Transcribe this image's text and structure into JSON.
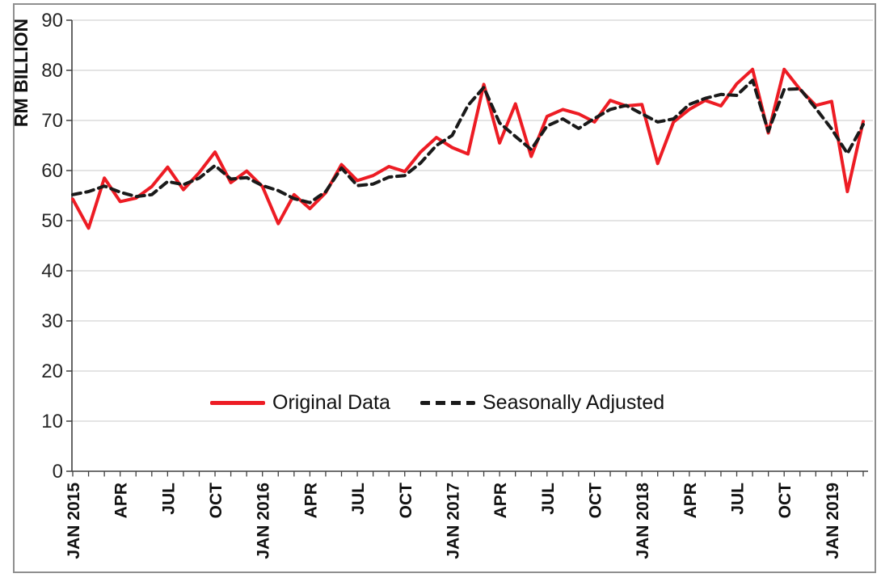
{
  "chart_data": {
    "type": "line",
    "title": "",
    "ylabel": "RM BILLION",
    "xlabel": "",
    "ylim": [
      0,
      90
    ],
    "yticks": [
      0,
      10,
      20,
      30,
      40,
      50,
      60,
      70,
      80,
      90
    ],
    "grid": "horizontal",
    "legend_position": "inside-bottom-center",
    "x_tick_every_months": 3,
    "x_tick_labels": [
      "JAN 2015",
      "APR",
      "JUL",
      "OCT",
      "JAN 2016",
      "APR",
      "JUL",
      "OCT",
      "JAN 2017",
      "APR",
      "JUL",
      "OCT",
      "JAN 2018",
      "APR",
      "JUL",
      "OCT",
      "JAN 2019"
    ],
    "x_range_months": "JAN 2015 to MAR 2019",
    "series": [
      {
        "name": "Original Data",
        "style": "solid",
        "color": "#ed1c24",
        "values": [
          54.3,
          48.5,
          58.5,
          53.8,
          54.5,
          56.8,
          60.7,
          56.2,
          59.6,
          63.7,
          57.6,
          59.9,
          56.8,
          49.4,
          55.2,
          52.4,
          55.6,
          61.2,
          58.0,
          59.0,
          60.8,
          59.8,
          63.7,
          66.6,
          64.6,
          63.3,
          77.2,
          65.5,
          73.3,
          62.8,
          70.8,
          72.2,
          71.3,
          69.7,
          74.0,
          72.9,
          73.2,
          61.4,
          69.7,
          72.2,
          74.0,
          72.9,
          77.3,
          80.2,
          67.5,
          80.2,
          76.2,
          73.0,
          73.8,
          55.8,
          69.8
        ]
      },
      {
        "name": "Seasonally Adjusted",
        "style": "dashed",
        "color": "#1a1a1a",
        "values": [
          55.2,
          55.8,
          56.9,
          55.7,
          54.8,
          55.2,
          57.8,
          57.2,
          58.5,
          61.0,
          58.3,
          58.6,
          57.0,
          56.0,
          54.4,
          53.6,
          55.8,
          60.5,
          57.0,
          57.3,
          58.7,
          59.0,
          61.5,
          65.0,
          67.0,
          73.0,
          76.6,
          69.5,
          66.8,
          64.2,
          68.9,
          70.3,
          68.4,
          70.4,
          72.2,
          73.0,
          71.3,
          69.7,
          70.3,
          73.2,
          74.4,
          75.2,
          75.0,
          78.0,
          67.8,
          76.2,
          76.3,
          72.4,
          68.3,
          63.4,
          69.2
        ]
      }
    ],
    "colors": {
      "gridline": "#c8c8c8",
      "axis": "#3f3f3f",
      "ytick_label": "#262626",
      "xtick_label": "#111111",
      "frame_border": "#8f8f8f",
      "background": "#ffffff"
    }
  }
}
